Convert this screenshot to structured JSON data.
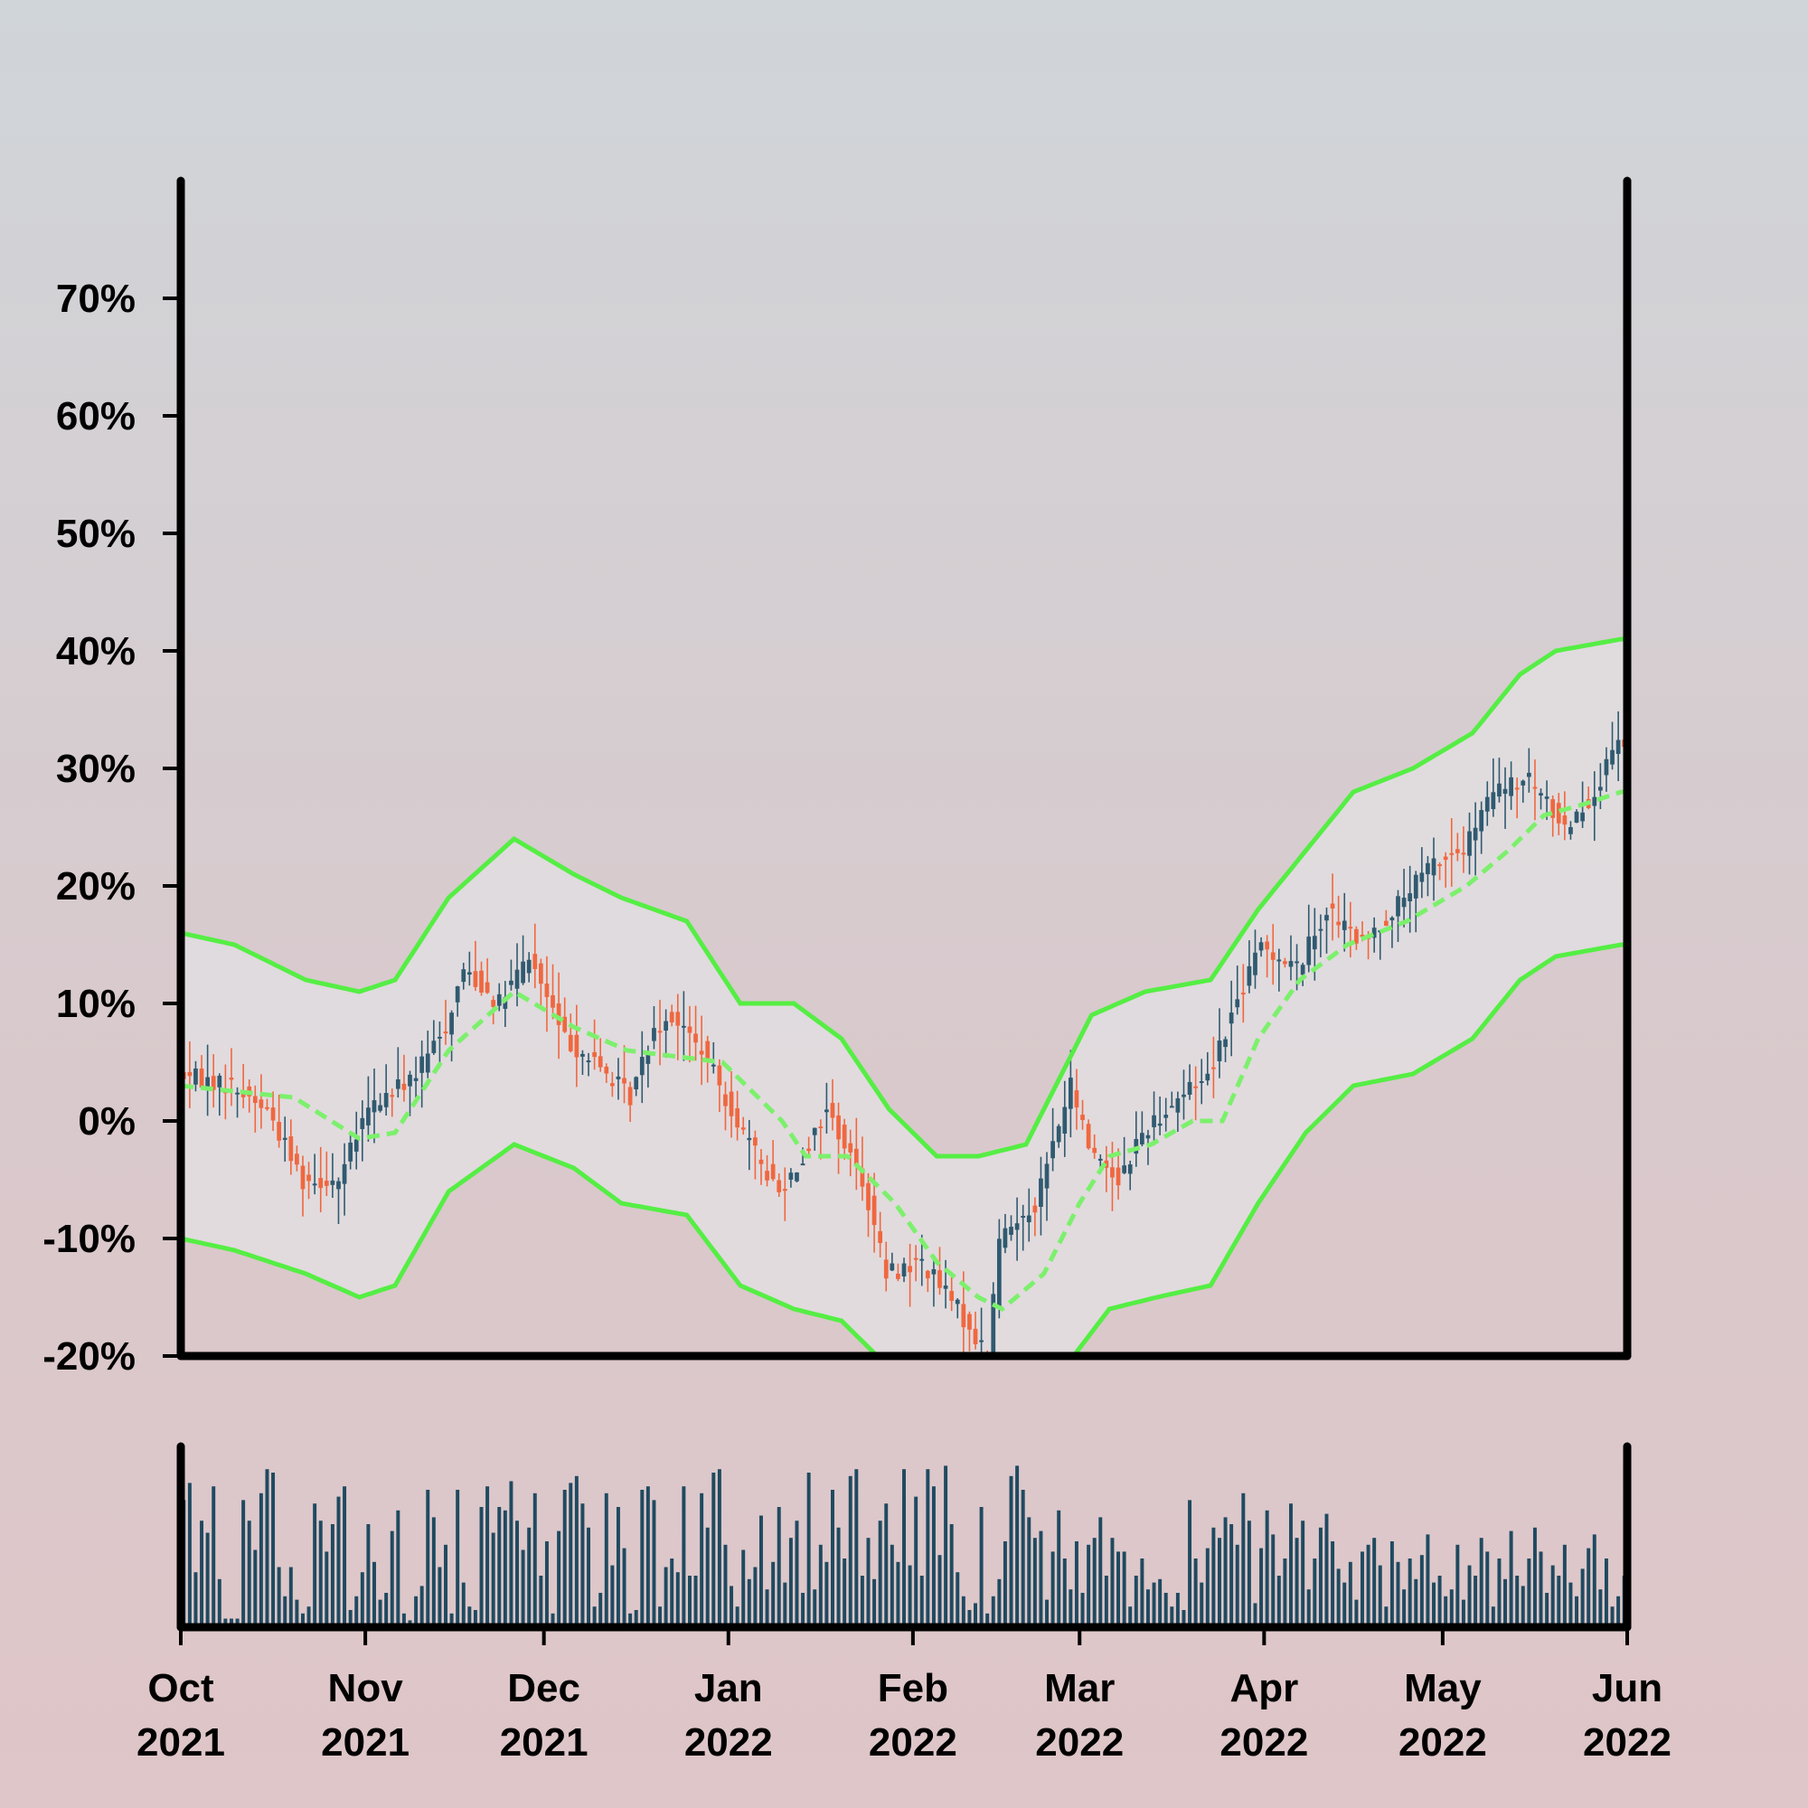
{
  "chart_data": {
    "type": "candlestick",
    "title": "",
    "xlabel": "",
    "ylabel": "",
    "ylim": [
      -20,
      80
    ],
    "y_ticks": [
      "70%",
      "60%",
      "50%",
      "40%",
      "30%",
      "20%",
      "10%",
      "0%",
      "-10%",
      "-20%"
    ],
    "y_tick_values": [
      70,
      60,
      50,
      40,
      30,
      20,
      10,
      0,
      -10,
      -20
    ],
    "x_range": [
      "2021-10-01",
      "2022-06-01"
    ],
    "x_ticks": [
      {
        "date": "2021-10-01",
        "month": "Oct",
        "year": "2021"
      },
      {
        "date": "2021-11-01",
        "month": "Nov",
        "year": "2021"
      },
      {
        "date": "2021-12-01",
        "month": "Dec",
        "year": "2021"
      },
      {
        "date": "2022-01-01",
        "month": "Jan",
        "year": "2022"
      },
      {
        "date": "2022-02-01",
        "month": "Feb",
        "year": "2022"
      },
      {
        "date": "2022-03-01",
        "month": "Mar",
        "year": "2022"
      },
      {
        "date": "2022-04-01",
        "month": "Apr",
        "year": "2022"
      },
      {
        "date": "2022-05-01",
        "month": "May",
        "year": "2022"
      },
      {
        "date": "2022-06-01",
        "month": "Jun",
        "year": "2022"
      }
    ],
    "legend": "none",
    "grid": false,
    "colors": {
      "up": "#2f5a70",
      "down": "#f0673f",
      "band": "#55ee44",
      "band_fill": "#e2dee1",
      "volume": "#1f4a60",
      "axis": "#000000"
    },
    "close_path": [
      [
        "2021-10-01",
        4
      ],
      [
        "2021-10-10",
        3
      ],
      [
        "2021-10-16",
        1
      ],
      [
        "2021-10-22",
        -5
      ],
      [
        "2021-10-28",
        -5
      ],
      [
        "2021-11-02",
        1
      ],
      [
        "2021-11-10",
        4
      ],
      [
        "2021-11-15",
        8
      ],
      [
        "2021-11-18",
        13
      ],
      [
        "2021-11-24",
        10
      ],
      [
        "2021-11-29",
        14
      ],
      [
        "2021-12-05",
        7
      ],
      [
        "2021-12-10",
        5
      ],
      [
        "2021-12-16",
        2
      ],
      [
        "2021-12-20",
        8
      ],
      [
        "2021-12-23",
        9
      ],
      [
        "2021-12-28",
        6
      ],
      [
        "2022-01-01",
        2
      ],
      [
        "2022-01-05",
        -2
      ],
      [
        "2022-01-10",
        -6
      ],
      [
        "2022-01-14",
        -3
      ],
      [
        "2022-01-18",
        1
      ],
      [
        "2022-01-24",
        -5
      ],
      [
        "2022-01-28",
        -13
      ],
      [
        "2022-02-03",
        -12
      ],
      [
        "2022-02-09",
        -16
      ],
      [
        "2022-02-14",
        -20
      ],
      [
        "2022-02-16",
        -10
      ],
      [
        "2022-02-22",
        -7
      ],
      [
        "2022-02-28",
        3
      ],
      [
        "2022-03-03",
        -2
      ],
      [
        "2022-03-08",
        -5
      ],
      [
        "2022-03-12",
        -1
      ],
      [
        "2022-03-18",
        2
      ],
      [
        "2022-03-23",
        4
      ],
      [
        "2022-03-27",
        9
      ],
      [
        "2022-04-01",
        15
      ],
      [
        "2022-04-07",
        13
      ],
      [
        "2022-04-12",
        18
      ],
      [
        "2022-04-18",
        15
      ],
      [
        "2022-04-25",
        19
      ],
      [
        "2022-04-30",
        22
      ],
      [
        "2022-05-05",
        23
      ],
      [
        "2022-05-10",
        28
      ],
      [
        "2022-05-16",
        29
      ],
      [
        "2022-05-22",
        25
      ],
      [
        "2022-05-27",
        28
      ],
      [
        "2022-05-31",
        32
      ]
    ],
    "moving_average": [
      [
        "2021-10-01",
        3
      ],
      [
        "2021-10-20",
        2
      ],
      [
        "2021-10-31",
        -1.5
      ],
      [
        "2021-11-06",
        -1
      ],
      [
        "2021-11-15",
        6
      ],
      [
        "2021-11-26",
        11
      ],
      [
        "2021-12-06",
        8
      ],
      [
        "2021-12-15",
        6
      ],
      [
        "2021-12-31",
        5
      ],
      [
        "2022-01-10",
        0
      ],
      [
        "2022-01-14",
        -3
      ],
      [
        "2022-01-21",
        -3
      ],
      [
        "2022-01-29",
        -7
      ],
      [
        "2022-02-05",
        -12
      ],
      [
        "2022-02-12",
        -15
      ],
      [
        "2022-02-16",
        -16
      ],
      [
        "2022-02-23",
        -13
      ],
      [
        "2022-03-01",
        -7
      ],
      [
        "2022-03-06",
        -3
      ],
      [
        "2022-03-13",
        -2
      ],
      [
        "2022-03-20",
        0
      ],
      [
        "2022-03-25",
        0
      ],
      [
        "2022-03-31",
        7
      ],
      [
        "2022-04-07",
        12
      ],
      [
        "2022-04-15",
        15
      ],
      [
        "2022-04-25",
        17
      ],
      [
        "2022-05-05",
        20
      ],
      [
        "2022-05-12",
        23
      ],
      [
        "2022-05-18",
        26
      ],
      [
        "2022-05-25",
        27
      ],
      [
        "2022-05-31",
        28
      ]
    ],
    "upper_band": [
      [
        "2021-10-01",
        16
      ],
      [
        "2021-10-10",
        15
      ],
      [
        "2021-10-22",
        12
      ],
      [
        "2021-10-31",
        11
      ],
      [
        "2021-11-06",
        12
      ],
      [
        "2021-11-15",
        19
      ],
      [
        "2021-11-26",
        24
      ],
      [
        "2021-12-06",
        21
      ],
      [
        "2021-12-14",
        19
      ],
      [
        "2021-12-25",
        17
      ],
      [
        "2022-01-03",
        10
      ],
      [
        "2022-01-12",
        10
      ],
      [
        "2022-01-20",
        7
      ],
      [
        "2022-01-28",
        1
      ],
      [
        "2022-02-05",
        -3
      ],
      [
        "2022-02-12",
        -3
      ],
      [
        "2022-02-20",
        -2
      ],
      [
        "2022-02-26",
        4
      ],
      [
        "2022-03-03",
        9
      ],
      [
        "2022-03-12",
        11
      ],
      [
        "2022-03-23",
        12
      ],
      [
        "2022-03-31",
        18
      ],
      [
        "2022-04-08",
        23
      ],
      [
        "2022-04-16",
        28
      ],
      [
        "2022-04-26",
        30
      ],
      [
        "2022-05-06",
        33
      ],
      [
        "2022-05-14",
        38
      ],
      [
        "2022-05-20",
        40
      ],
      [
        "2022-05-31",
        41
      ]
    ],
    "lower_band": [
      [
        "2021-10-01",
        -10
      ],
      [
        "2021-10-10",
        -11
      ],
      [
        "2021-10-22",
        -13
      ],
      [
        "2021-10-31",
        -15
      ],
      [
        "2021-11-06",
        -14
      ],
      [
        "2021-11-15",
        -6
      ],
      [
        "2021-11-26",
        -2
      ],
      [
        "2021-12-06",
        -4
      ],
      [
        "2021-12-14",
        -7
      ],
      [
        "2021-12-25",
        -8
      ],
      [
        "2022-01-03",
        -14
      ],
      [
        "2022-01-12",
        -16
      ],
      [
        "2022-01-20",
        -17
      ],
      [
        "2022-01-28",
        -21
      ],
      [
        "2022-02-05",
        -24
      ],
      [
        "2022-02-12",
        -27
      ],
      [
        "2022-02-20",
        -26
      ],
      [
        "2022-02-28",
        -20
      ],
      [
        "2022-03-06",
        -16
      ],
      [
        "2022-03-14",
        -15
      ],
      [
        "2022-03-23",
        -14
      ],
      [
        "2022-03-31",
        -7
      ],
      [
        "2022-04-08",
        -1
      ],
      [
        "2022-04-16",
        3
      ],
      [
        "2022-04-26",
        4
      ],
      [
        "2022-05-06",
        7
      ],
      [
        "2022-05-14",
        12
      ],
      [
        "2022-05-20",
        14
      ],
      [
        "2022-05-31",
        15
      ]
    ],
    "volume_pattern": [
      0.74,
      0.84,
      0.32,
      0.62,
      0.55,
      0.82,
      0.28,
      0.05,
      0.05,
      0.05,
      0.74,
      0.62,
      0.45,
      0.78,
      0.92,
      0.9,
      0.35,
      0.18,
      0.35,
      0.16,
      0.08,
      0.12,
      0.72,
      0.62,
      0.44,
      0.6,
      0.76,
      0.82,
      0.1,
      0.18,
      0.32,
      0.6,
      0.38,
      0.16,
      0.2,
      0.56,
      0.68,
      0.08,
      0.04,
      0.18,
      0.24,
      0.8,
      0.64,
      0.35,
      0.48,
      0.08,
      0.8,
      0.26,
      0.12,
      0.1,
      0.7,
      0.82,
      0.55,
      0.7,
      0.68,
      0.85,
      0.62,
      0.45,
      0.58,
      0.78,
      0.3,
      0.5,
      0.08,
      0.56,
      0.8,
      0.84,
      0.88,
      0.72,
      0.58,
      0.12,
      0.2,
      0.78,
      0.36,
      0.7,
      0.46,
      0.08,
      0.1,
      0.8,
      0.82,
      0.74,
      0.12,
      0.35,
      0.4,
      0.32,
      0.82,
      0.3,
      0.3,
      0.78,
      0.58,
      0.9,
      0.92,
      0.48,
      0.24,
      0.12,
      0.45,
      0.28,
      0.35,
      0.65,
      0.22,
      0.38,
      0.7,
      0.26,
      0.52,
      0.62,
      0.2,
      0.9,
      0.22,
      0.48,
      0.38,
      0.8,
      0.58,
      0.4,
      0.88,
      0.92,
      0.3,
      0.52,
      0.28,
      0.62,
      0.72,
      0.48,
      0.38,
      0.92,
      0.36,
      0.76,
      0.3,
      0.92,
      0.82,
      0.42,
      0.94,
      0.6,
      0.32,
      0.18,
      0.1,
      0.14,
      0.7,
      0.08,
      0.18,
      0.28,
      0.5,
      0.88,
      0.94,
      0.8,
      0.64,
      0.52,
      0.56,
      0.16,
      0.44,
      0.68,
      0.4,
      0.22,
      0.5,
      0.2,
      0.48,
      0.52,
      0.64,
      0.3,
      0.52,
      0.44,
      0.44,
      0.12,
      0.3,
      0.4,
      0.22,
      0.26,
      0.28,
      0.2,
      0.12,
      0.2,
      0.1,
      0.74,
      0.4,
      0.26,
      0.46,
      0.58,
      0.52,
      0.64,
      0.6,
      0.48,
      0.78,
      0.62,
      0.14,
      0.46,
      0.68,
      0.54,
      0.3,
      0.4,
      0.72,
      0.52,
      0.62,
      0.22,
      0.4,
      0.58,
      0.66,
      0.5,
      0.34,
      0.26,
      0.38,
      0.16,
      0.44,
      0.48,
      0.52,
      0.36,
      0.12,
      0.5,
      0.38,
      0.22,
      0.4,
      0.28,
      0.42,
      0.54,
      0.26,
      0.3,
      0.18,
      0.22,
      0.48,
      0.16,
      0.36,
      0.3,
      0.52,
      0.44,
      0.12,
      0.4,
      0.28,
      0.56,
      0.3,
      0.24,
      0.4,
      0.58,
      0.44,
      0.2,
      0.36,
      0.3,
      0.48,
      0.26,
      0.18,
      0.34,
      0.46,
      0.54,
      0.22,
      0.4,
      0.12,
      0.18,
      0.3
    ]
  }
}
